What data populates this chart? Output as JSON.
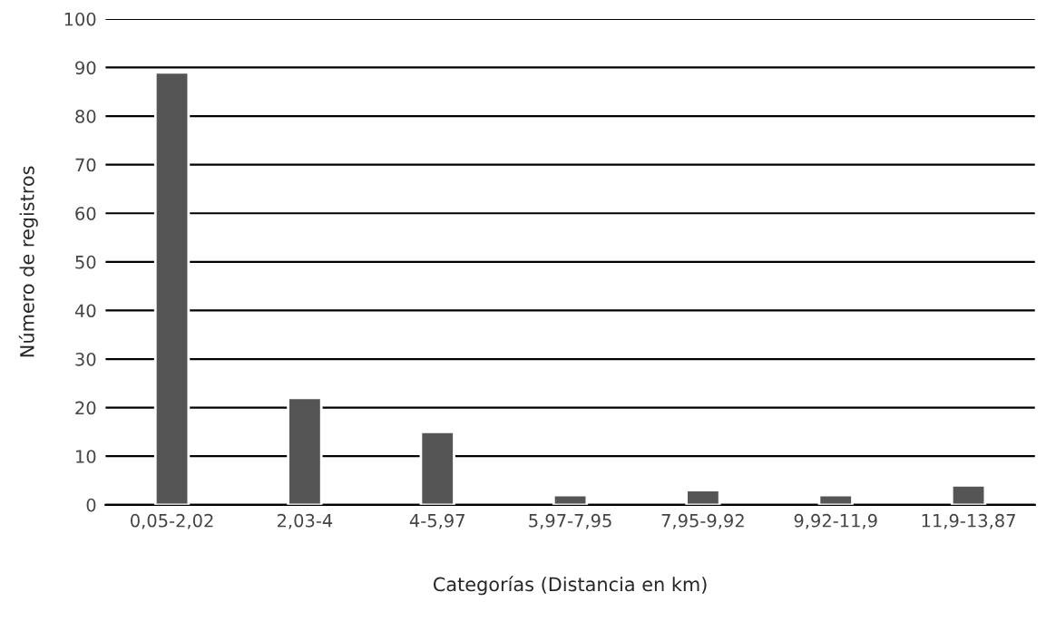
{
  "chart_data": {
    "type": "bar",
    "xlabel": "Categorías (Distancia en km)",
    "ylabel": "Número de registros",
    "categories": [
      "0,05-2,02",
      "2,03-4",
      "4-5,97",
      "5,97-7,95",
      "7,95-9,92",
      "9,92-11,9",
      "11,9-13,87"
    ],
    "values": [
      89,
      22,
      15,
      2,
      3,
      2,
      4
    ],
    "color": "#555555",
    "ylim": [
      0,
      100
    ],
    "yticks": [
      0,
      10,
      20,
      30,
      40,
      50,
      60,
      70,
      80,
      90,
      100
    ],
    "grid": "y"
  }
}
